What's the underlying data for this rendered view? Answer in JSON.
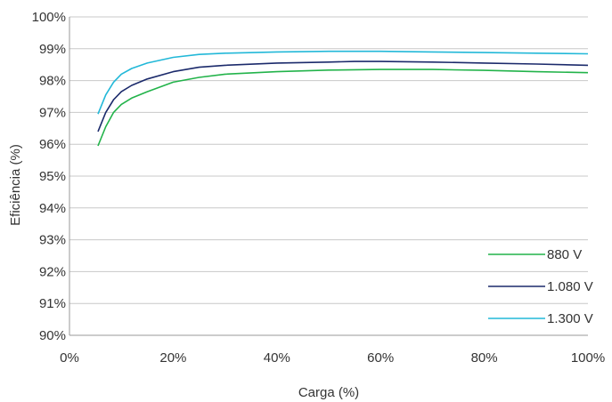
{
  "chart_data": {
    "type": "line",
    "xlabel": "Carga (%)",
    "ylabel": "Eficiência (%)",
    "xlim": [
      0,
      100
    ],
    "ylim": [
      90,
      100
    ],
    "x_ticks": [
      0,
      20,
      40,
      60,
      80,
      100
    ],
    "x_tick_labels": [
      "0%",
      "20%",
      "40%",
      "60%",
      "80%",
      "100%"
    ],
    "y_ticks": [
      90,
      91,
      92,
      93,
      94,
      95,
      96,
      97,
      98,
      99,
      100
    ],
    "y_tick_labels": [
      "90%",
      "91%",
      "92%",
      "93%",
      "94%",
      "95%",
      "96%",
      "97%",
      "98%",
      "99%",
      "100%"
    ],
    "grid": "horizontal",
    "legend_position": "bottom-right",
    "series": [
      {
        "name": "880 V",
        "color": "#22b34a",
        "x": [
          5.5,
          7,
          8.5,
          10,
          12,
          15,
          20,
          25,
          30,
          40,
          50,
          60,
          70,
          80,
          90,
          100
        ],
        "y": [
          95.95,
          96.55,
          97.0,
          97.25,
          97.45,
          97.65,
          97.95,
          98.1,
          98.2,
          98.28,
          98.33,
          98.35,
          98.35,
          98.32,
          98.28,
          98.25
        ]
      },
      {
        "name": "1.080 V",
        "color": "#1b2a6b",
        "x": [
          5.5,
          7,
          8.5,
          10,
          12,
          15,
          20,
          25,
          30,
          40,
          50,
          55,
          60,
          70,
          80,
          90,
          100
        ],
        "y": [
          96.4,
          97.0,
          97.4,
          97.65,
          97.85,
          98.05,
          98.28,
          98.42,
          98.48,
          98.55,
          98.58,
          98.6,
          98.6,
          98.58,
          98.55,
          98.52,
          98.48
        ]
      },
      {
        "name": "1.300 V",
        "color": "#22b8d8",
        "x": [
          5.5,
          7,
          8.5,
          10,
          12,
          15,
          20,
          25,
          30,
          40,
          50,
          60,
          70,
          80,
          90,
          100
        ],
        "y": [
          96.95,
          97.55,
          97.95,
          98.2,
          98.38,
          98.55,
          98.73,
          98.82,
          98.86,
          98.9,
          98.92,
          98.92,
          98.9,
          98.88,
          98.86,
          98.84
        ]
      }
    ]
  }
}
